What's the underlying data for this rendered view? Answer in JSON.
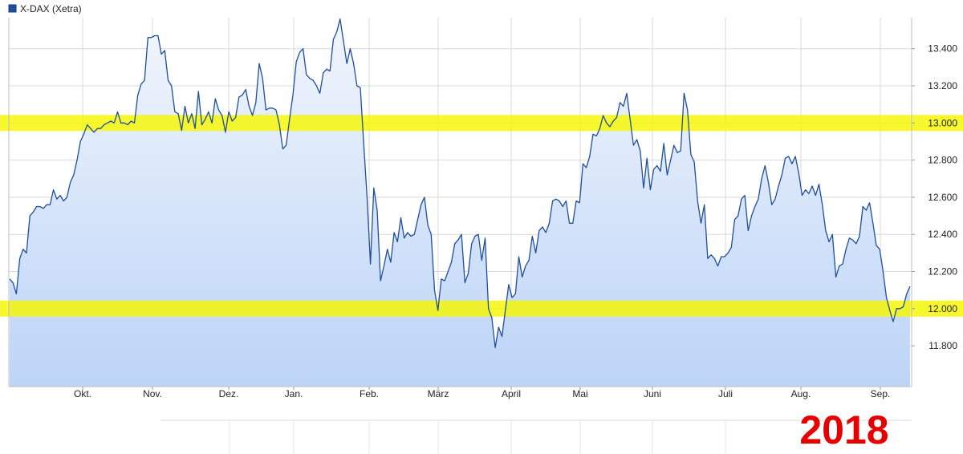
{
  "chart_data": {
    "type": "area",
    "legend": "X-DAX (Xetra)",
    "year_label": "2018",
    "colors": {
      "line": "#1f4e9c",
      "area_top": "#f2f6fd",
      "area_bottom": "#bcd4f7",
      "grid": "#d9d9d9",
      "highlight": "#f7f700",
      "legend_box": "#1f4e9c",
      "year": "#e60000"
    },
    "x_tick_labels": [
      "Okt.",
      "Nov.",
      "Dez.",
      "Jan.",
      "Feb.",
      "März",
      "April",
      "Mai",
      "Juni",
      "Juli",
      "Aug.",
      "Sep."
    ],
    "y_ticks": [
      11800,
      12000,
      12200,
      12400,
      12600,
      12800,
      13000,
      13200,
      13400
    ],
    "y_tick_labels": [
      "11.800",
      "12.000",
      "12.200",
      "12.400",
      "12.600",
      "12.800",
      "13.000",
      "13.200",
      "13.400"
    ],
    "ylim": [
      11600,
      13620
    ],
    "highlight_levels": [
      13000,
      12000
    ],
    "grid": true,
    "series": [
      {
        "values": [
          12160,
          12140,
          12080,
          12270,
          12320,
          12300,
          12500,
          12520,
          12550,
          12550,
          12540,
          12560,
          12560,
          12640,
          12590,
          12610,
          12580,
          12600,
          12680,
          12720,
          12800,
          12900,
          12940,
          12990,
          12970,
          12950,
          12970,
          12970,
          12990,
          13000,
          13010,
          13000,
          13060,
          13000,
          13000,
          12990,
          13010,
          13000,
          13150,
          13210,
          13230,
          13460,
          13460,
          13470,
          13470,
          13370,
          13390,
          13230,
          13200,
          13060,
          13050,
          12960,
          13090,
          13000,
          13050,
          12970,
          13170,
          12990,
          13020,
          13060,
          13000,
          13130,
          13070,
          13040,
          12950,
          13060,
          13010,
          13030,
          13140,
          13150,
          13180,
          13090,
          13040,
          13110,
          13320,
          13240,
          13070,
          13080,
          13080,
          13070,
          12990,
          12860,
          12880,
          13020,
          13150,
          13330,
          13380,
          13400,
          13260,
          13240,
          13230,
          13200,
          13160,
          13270,
          13290,
          13280,
          13450,
          13490,
          13560,
          13440,
          13320,
          13400,
          13320,
          13200,
          13190,
          12890,
          12600,
          12240,
          12650,
          12530,
          12150,
          12230,
          12320,
          12250,
          12410,
          12360,
          12490,
          12380,
          12410,
          12390,
          12400,
          12480,
          12560,
          12600,
          12450,
          12400,
          12100,
          11990,
          12160,
          12150,
          12200,
          12250,
          12350,
          12370,
          12400,
          12140,
          12190,
          12350,
          12390,
          12400,
          12260,
          12380,
          12000,
          11950,
          11790,
          11900,
          11850,
          11990,
          12130,
          12060,
          12080,
          12280,
          12170,
          12230,
          12260,
          12390,
          12300,
          12420,
          12440,
          12410,
          12460,
          12580,
          12590,
          12580,
          12550,
          12580,
          12460,
          12460,
          12580,
          12570,
          12780,
          12760,
          12820,
          12940,
          12930,
          12970,
          13040,
          13000,
          12980,
          13010,
          13030,
          13110,
          13090,
          13160,
          13020,
          12880,
          12910,
          12850,
          12650,
          12810,
          12640,
          12750,
          12770,
          12740,
          12890,
          12720,
          12800,
          12880,
          12840,
          12850,
          13160,
          13070,
          12830,
          12790,
          12580,
          12460,
          12560,
          12270,
          12290,
          12270,
          12230,
          12280,
          12280,
          12300,
          12330,
          12480,
          12500,
          12590,
          12610,
          12420,
          12500,
          12550,
          12590,
          12700,
          12770,
          12680,
          12560,
          12590,
          12660,
          12720,
          12810,
          12820,
          12780,
          12820,
          12730,
          12610,
          12640,
          12620,
          12660,
          12610,
          12670,
          12560,
          12420,
          12360,
          12400,
          12170,
          12230,
          12240,
          12320,
          12380,
          12370,
          12350,
          12390,
          12550,
          12530,
          12570,
          12460,
          12340,
          12320,
          12200,
          12060,
          11990,
          11930,
          12000,
          12000,
          12010,
          12080,
          12120
        ]
      }
    ]
  }
}
